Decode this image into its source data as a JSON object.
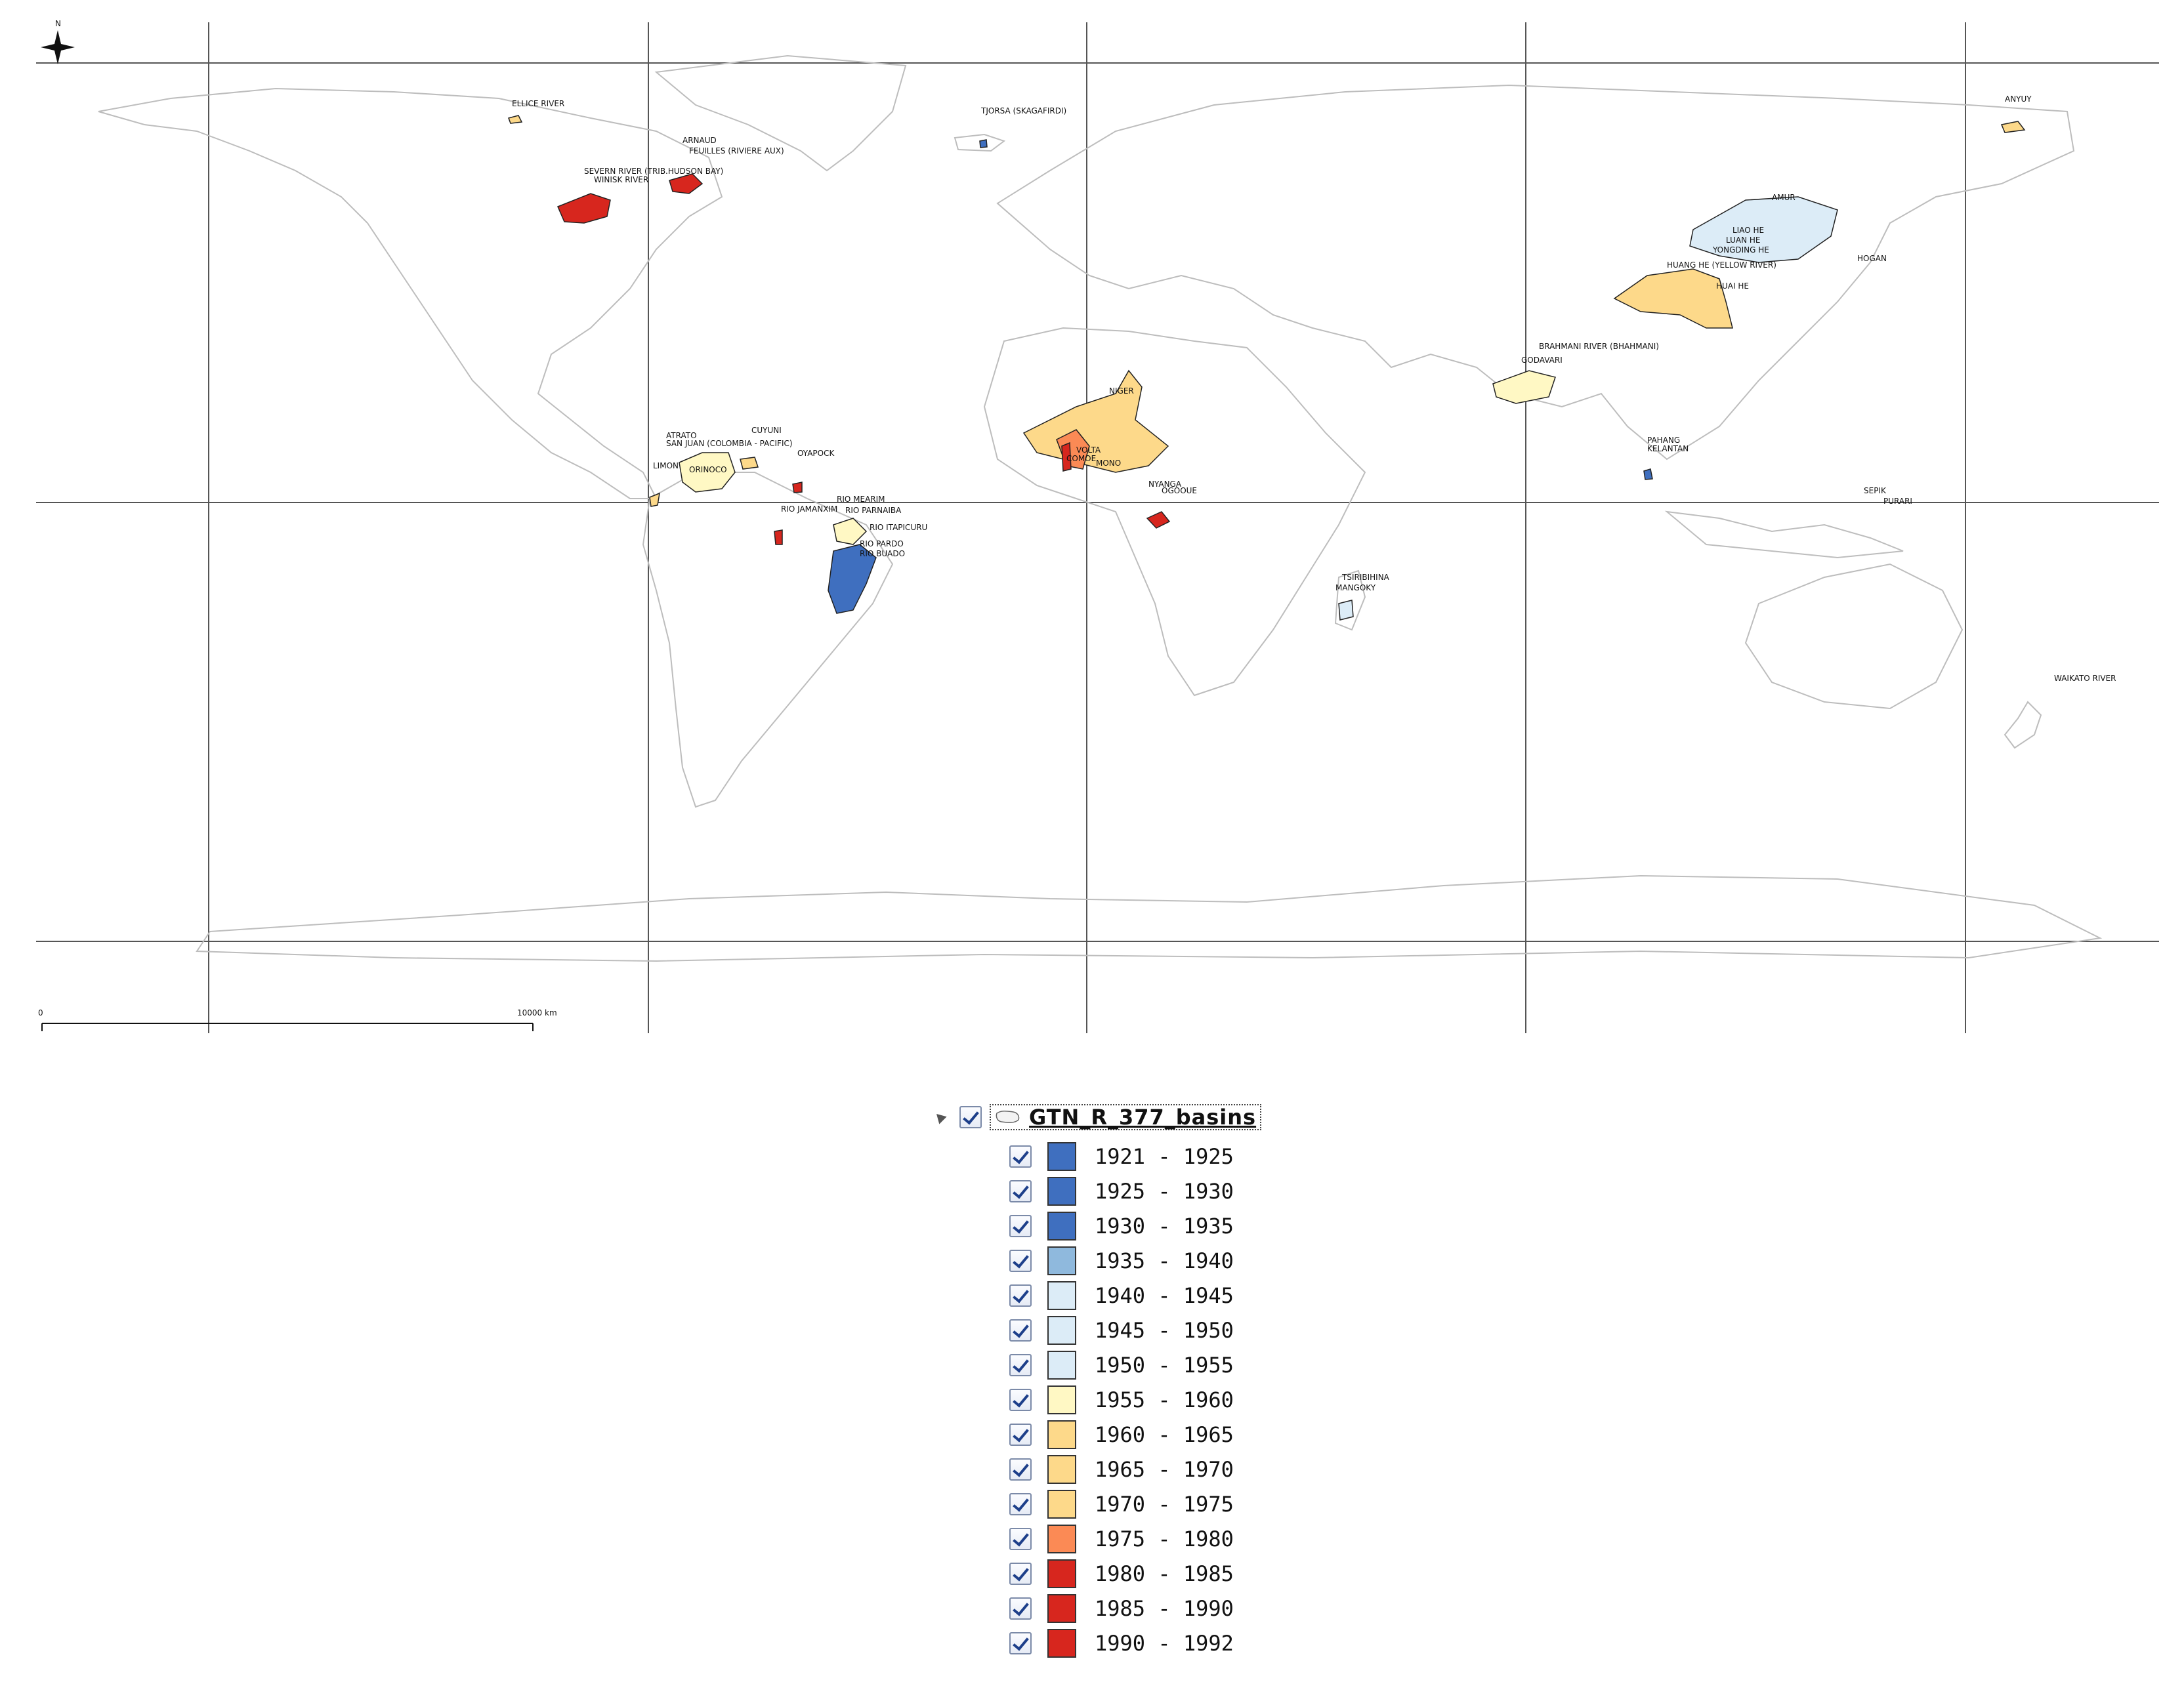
{
  "map": {
    "north_label": "N",
    "scale_bar": {
      "start_label": "0",
      "end_label": "10000 km"
    },
    "basin_labels": [
      "ELLICE RIVER",
      "SEVERN RIVER (TRIB.HUDSON BAY)",
      "WINISK RIVER",
      "ARNAUD",
      "FEUILLES (RIVIERE AUX)",
      "TJORSA (SKAGAFIRDI)",
      "AMUR",
      "LIAO HE",
      "LUAN HE",
      "YONGDING HE",
      "HUANG HE (YELLOW RIVER)",
      "HUAI HE",
      "HOGAN",
      "ANYUY",
      "BRAHMANI RIVER (BHAHMANI)",
      "GODAVARI",
      "NIGER",
      "VOLTA",
      "COMOE",
      "MONO",
      "NYANGA",
      "OGOOUE",
      "ATRATO",
      "SAN JUAN (COLOMBIA - PACIFIC)",
      "ORINOCO",
      "CUYUNI",
      "OYAPOCK",
      "LIMON",
      "RIO MEARIM",
      "RIO PARNAIBA",
      "RIO JAMANXIM",
      "RIO ITAPICURU",
      "RIO PARDO",
      "RIO BUADO",
      "PAHANG",
      "KELANTAN",
      "SEPIK",
      "PURARI",
      "TSIRIBIHINA",
      "MANGOKY",
      "WAIKATO RIVER"
    ],
    "colors": {
      "c1": "#3f6fbf",
      "c2": "#8fb9dd",
      "c3": "#dcecf7",
      "c4": "#fff8c4",
      "c5": "#fdd98a",
      "c6": "#fb8a55",
      "c7": "#d7261e",
      "outline": "#bdbdbd",
      "grid": "#555555"
    }
  },
  "legend": {
    "layer_name": "GTN_R_377_basins",
    "items": [
      {
        "label": "1921 - 1925",
        "color": "#3f6fbf"
      },
      {
        "label": "1925 - 1930",
        "color": "#3f6fbf"
      },
      {
        "label": "1930 - 1935",
        "color": "#3f6fbf"
      },
      {
        "label": "1935 - 1940",
        "color": "#8fb9dd"
      },
      {
        "label": "1940 - 1945",
        "color": "#dcecf7"
      },
      {
        "label": "1945 - 1950",
        "color": "#dcecf7"
      },
      {
        "label": "1950 - 1955",
        "color": "#dcecf7"
      },
      {
        "label": "1955 - 1960",
        "color": "#fff8c4"
      },
      {
        "label": "1960 - 1965",
        "color": "#fdd98a"
      },
      {
        "label": "1965 - 1970",
        "color": "#fdd98a"
      },
      {
        "label": "1970 - 1975",
        "color": "#fdd98a"
      },
      {
        "label": "1975 - 1980",
        "color": "#fb8a55"
      },
      {
        "label": "1980 - 1985",
        "color": "#d7261e"
      },
      {
        "label": "1985 - 1990",
        "color": "#d7261e"
      },
      {
        "label": "1990 - 1992",
        "color": "#d7261e"
      }
    ]
  }
}
